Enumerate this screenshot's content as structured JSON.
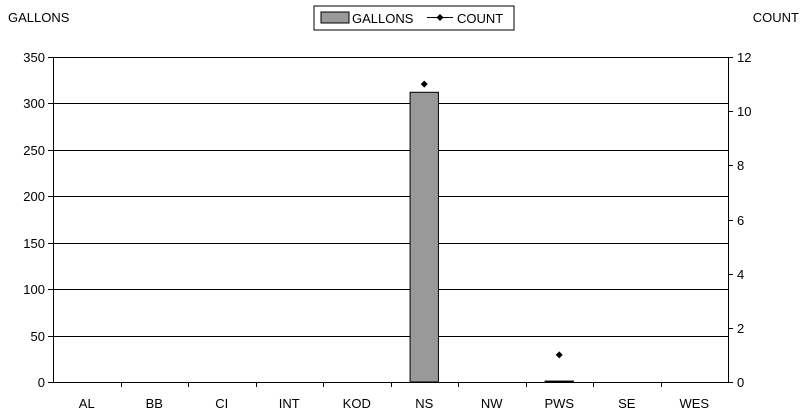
{
  "chart_data": {
    "type": "bar",
    "left_axis_label": "GALLONS",
    "right_axis_label": "COUNT",
    "categories": [
      "AL",
      "BB",
      "CI",
      "INT",
      "KOD",
      "NS",
      "NW",
      "PWS",
      "SE",
      "WES"
    ],
    "series": [
      {
        "name": "GALLONS",
        "type": "bar",
        "axis": "left",
        "color": "#999999",
        "values": [
          0,
          0,
          0,
          0,
          0,
          312,
          0,
          1,
          0,
          0
        ]
      },
      {
        "name": "COUNT",
        "type": "line-markers",
        "axis": "right",
        "color": "#000000",
        "values": [
          0,
          0,
          0,
          0,
          0,
          11,
          0,
          1,
          0,
          0
        ],
        "shown_markers": [
          false,
          false,
          false,
          false,
          false,
          true,
          false,
          true,
          false,
          false
        ]
      }
    ],
    "ylim_left": [
      0,
      350
    ],
    "yticks_left": [
      0,
      50,
      100,
      150,
      200,
      250,
      300,
      350
    ],
    "ylim_right": [
      0,
      12
    ],
    "yticks_right": [
      0,
      2,
      4,
      6,
      8,
      10,
      12
    ],
    "grid": true,
    "legend_position": "top-center"
  }
}
